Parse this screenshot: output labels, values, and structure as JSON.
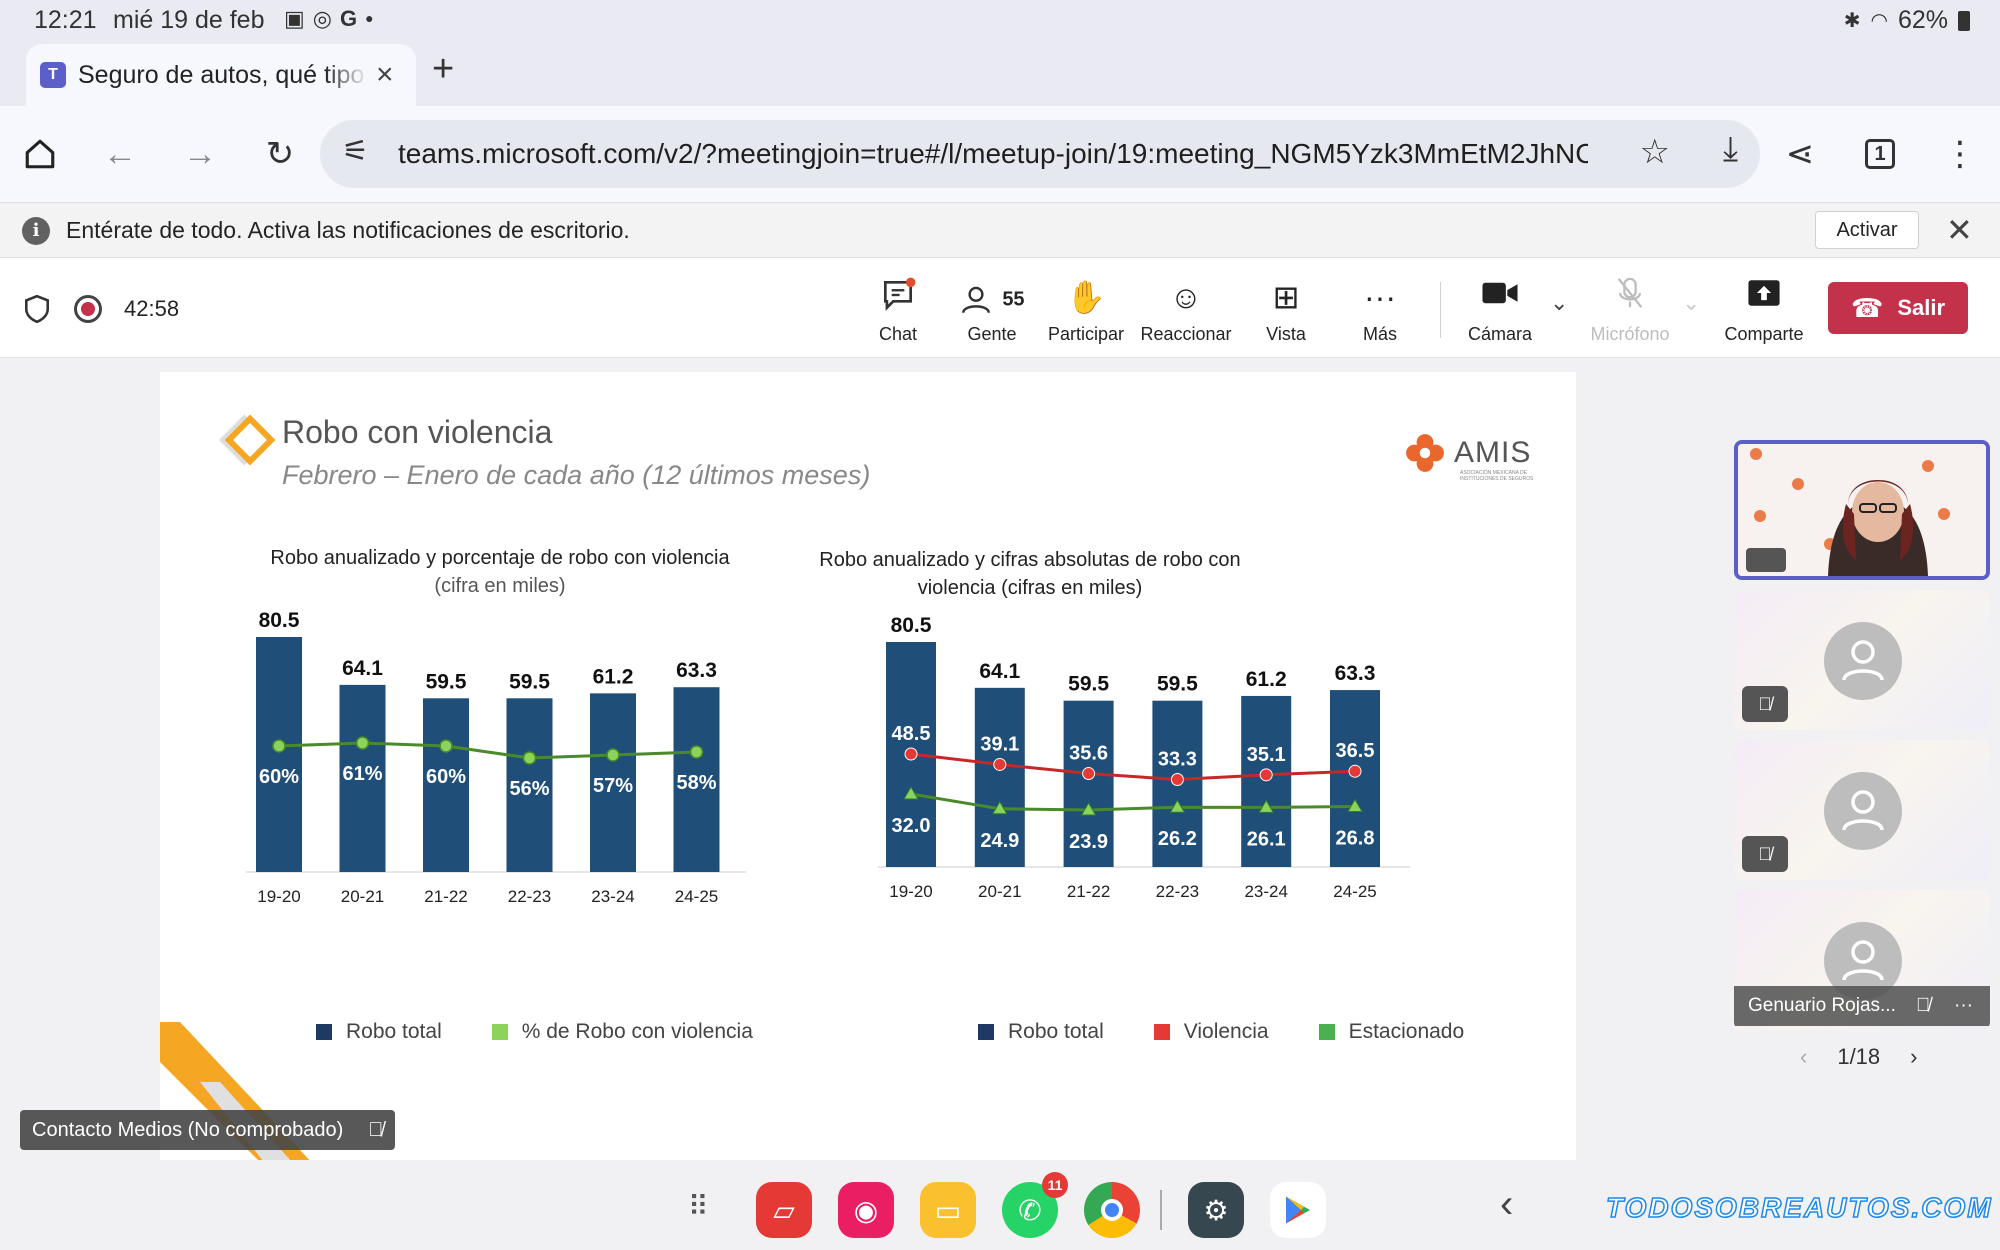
{
  "status": {
    "time": "12:21",
    "date": "mié 19 de feb",
    "battery": "62%"
  },
  "browser": {
    "tab_title": "Seguro de autos, qué tipo de",
    "url": "teams.microsoft.com/v2/?meetingjoin=true#/l/meetup-join/19:meeting_NGM5Yzk3MmEtM2JhNC0C",
    "tab_count": "1"
  },
  "notification": {
    "message": "Entérate de todo. Activa las notificaciones de escritorio.",
    "activar_label": "Activar"
  },
  "meeting": {
    "timer": "42:58",
    "people_count": "55",
    "items": [
      {
        "label": "Chat"
      },
      {
        "label": "Gente"
      },
      {
        "label": "Participar"
      },
      {
        "label": "Reaccionar"
      },
      {
        "label": "Vista"
      },
      {
        "label": "Más"
      },
      {
        "label": "Cámara"
      },
      {
        "label": "Micrófono"
      },
      {
        "label": "Comparte"
      }
    ],
    "leave_label": "Salir"
  },
  "slide": {
    "title": "Robo con  violencia",
    "subtitle": "Febrero – Enero de cada año (12 últimos meses)",
    "logo_text": "AMIS",
    "logo_subtext": "ASOCIACIÓN MEXICANA DE INSTITUCIONES DE SEGUROS",
    "left_title_line1": "Robo anualizado y porcentaje de robo con violencia",
    "left_title_line2": "(cifra en miles)",
    "right_title_line1": "Robo anualizado y cifras absolutas de robo con",
    "right_title_line2": "violencia (cifras en miles)",
    "left_legend": [
      "Robo total",
      "% de Robo con violencia"
    ],
    "right_legend": [
      "Robo total",
      "Violencia",
      "Estacionado"
    ]
  },
  "chart_data": [
    {
      "type": "bar",
      "categories": [
        "19-20",
        "20-21",
        "21-22",
        "22-23",
        "23-24",
        "24-25"
      ],
      "series": [
        {
          "name": "Robo total",
          "values": [
            80.5,
            64.1,
            59.5,
            59.5,
            61.2,
            63.3
          ]
        },
        {
          "name": "% de Robo con violencia",
          "values": [
            60,
            61,
            60,
            56,
            57,
            58
          ]
        }
      ],
      "value_labels": [
        "80.5",
        "64.1",
        "59.5",
        "59.5",
        "61.2",
        "63.3"
      ],
      "pct_labels": [
        "60%",
        "61%",
        "60%",
        "56%",
        "57%",
        "58%"
      ],
      "colors": {
        "bar": "#1f4e79",
        "line": "#4a8a2a"
      }
    },
    {
      "type": "bar",
      "categories": [
        "19-20",
        "20-21",
        "21-22",
        "22-23",
        "23-24",
        "24-25"
      ],
      "series": [
        {
          "name": "Robo total",
          "values": [
            80.5,
            64.1,
            59.5,
            59.5,
            61.2,
            63.3
          ]
        },
        {
          "name": "Violencia",
          "values": [
            48.5,
            39.1,
            35.6,
            33.3,
            35.1,
            36.5
          ]
        },
        {
          "name": "Estacionado",
          "values": [
            32.0,
            24.9,
            23.9,
            26.2,
            26.1,
            26.8
          ]
        }
      ],
      "value_labels": [
        "80.5",
        "64.1",
        "59.5",
        "59.5",
        "61.2",
        "63.3"
      ],
      "violencia_labels": [
        "48.5",
        "39.1",
        "35.6",
        "33.3",
        "35.1",
        "36.5"
      ],
      "estacionado_labels": [
        "32.0",
        "24.9",
        "23.9",
        "26.2",
        "26.1",
        "26.8"
      ],
      "colors": {
        "bar": "#1f4e79",
        "violencia": "#c62828",
        "estacionado": "#4a8a2a"
      }
    }
  ],
  "participants": {
    "tiles": [
      {
        "name": "",
        "type": "video"
      },
      {
        "name": "",
        "type": "avatar"
      },
      {
        "name": "",
        "type": "avatar"
      },
      {
        "name": "Genuario Rojas...",
        "type": "avatar"
      }
    ],
    "pager": "1/18",
    "speaker_card": "Contacto Medios (No comprobado)"
  },
  "dock": {
    "whatsapp_badge": "11",
    "watermark": "TODOSOBREAUTOS.COM"
  }
}
